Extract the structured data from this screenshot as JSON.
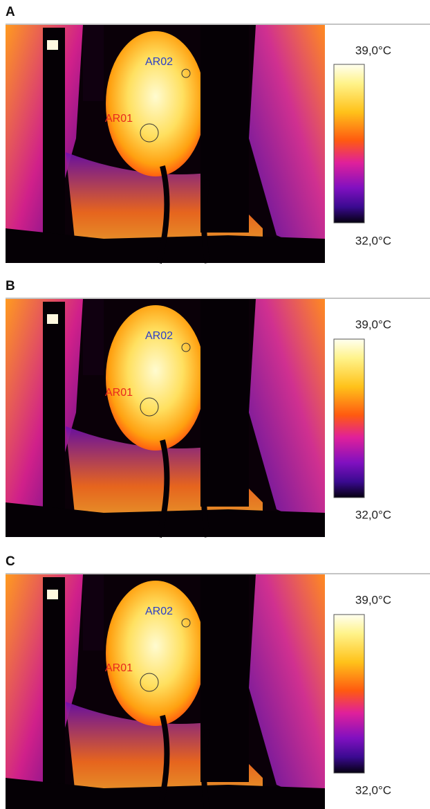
{
  "panels": [
    {
      "label": "A",
      "scale_max": "39,0°C",
      "scale_min": "32,0°C",
      "regions": [
        {
          "label": "AR02"
        },
        {
          "label": "AR01"
        }
      ]
    },
    {
      "label": "B",
      "scale_max": "39,0°C",
      "scale_min": "32,0°C",
      "regions": [
        {
          "label": "AR02"
        },
        {
          "label": "AR01"
        }
      ]
    },
    {
      "label": "C",
      "scale_max": "39,0°C",
      "scale_min": "32,0°C",
      "regions": [
        {
          "label": "AR02"
        },
        {
          "label": "AR01"
        }
      ]
    }
  ]
}
